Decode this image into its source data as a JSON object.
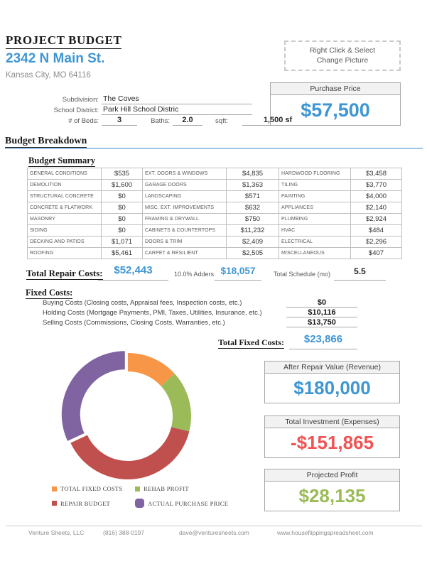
{
  "header": {
    "title": "PROJECT BUDGET",
    "address": "2342 N Main St.",
    "city": "Kansas City, MO 64116",
    "picture_line1": "Right Click & Select",
    "picture_line2": "Change Picture"
  },
  "purchase_price": {
    "label": "Purchase Price",
    "value": "$57,500"
  },
  "property": {
    "subdivision_label": "Subdivision:",
    "subdivision": "The Coves",
    "school_label": "School District:",
    "school": "Park Hill School Distric",
    "beds_label": "# of Beds:",
    "beds": "3",
    "baths_label": "Baths:",
    "baths": "2.0",
    "sqft_label": "sqft:",
    "sqft": "1,500 sf"
  },
  "budget_breakdown_title": "Budget Breakdown",
  "budget_summary": {
    "title": "Budget Summary",
    "groups": [
      [
        {
          "label": "GENERAL CONDITIONS",
          "value": "$535"
        },
        {
          "label": "DEMOLITION",
          "value": "$1,600"
        },
        {
          "label": "STRUCTURAL CONCRETE",
          "value": "$0"
        },
        {
          "label": "CONCRETE & FLATWORK",
          "value": "$0"
        },
        {
          "label": "MASONRY",
          "value": "$0"
        },
        {
          "label": "SIDING",
          "value": "$0"
        },
        {
          "label": "DECKING AND PATIOS",
          "value": "$1,071"
        },
        {
          "label": "ROOFING",
          "value": "$5,461"
        }
      ],
      [
        {
          "label": "EXT. DOORS & WINDOWS",
          "value": "$4,835"
        },
        {
          "label": "GARAGE DOORS",
          "value": "$1,363"
        },
        {
          "label": "LANDSCAPING",
          "value": "$571"
        },
        {
          "label": "MISC. EXT. IMPROVEMENTS",
          "value": "$632"
        },
        {
          "label": "FRAMING & DRYWALL",
          "value": "$750"
        },
        {
          "label": "CABINETS & COUNTERTOPS",
          "value": "$11,232"
        },
        {
          "label": "DOORS & TRIM",
          "value": "$2,409"
        },
        {
          "label": "CARPET & RESILIENT",
          "value": "$2,505"
        }
      ],
      [
        {
          "label": "HARDWOOD FLOORING",
          "value": "$3,458"
        },
        {
          "label": "TILING",
          "value": "$3,770"
        },
        {
          "label": "PAINTING",
          "value": "$4,000"
        },
        {
          "label": "APPLIANCES",
          "value": "$2,140"
        },
        {
          "label": "PLUMBING",
          "value": "$2,924"
        },
        {
          "label": "HVAC",
          "value": "$484"
        },
        {
          "label": "ELECTRICAL",
          "value": "$2,296"
        },
        {
          "label": "MISCELLANEOUS",
          "value": "$407"
        }
      ]
    ]
  },
  "totals": {
    "repair_label": "Total Repair Costs:",
    "repair_value": "$52,443",
    "adders_label": "10.0% Adders",
    "adders_value": "$18,057",
    "schedule_label": "Total Schedule (mo)",
    "schedule_value": "5.5"
  },
  "fixed_costs": {
    "title": "Fixed Costs:",
    "items": [
      {
        "label": "Buying Costs (Closing costs, Appraisal fees, Inspection costs, etc.)",
        "value": "$0"
      },
      {
        "label": "Holding Costs (Mortgage Payments, PMI, Taxes, Utilities, Insurance, etc.)",
        "value": "$10,116"
      },
      {
        "label": "Selling Costs (Commissions, Closing Costs, Warranties, etc.)",
        "value": "$13,750"
      }
    ],
    "total_label": "Total Fixed Costs:",
    "total_value": "$23,866"
  },
  "chart_data": {
    "type": "pie",
    "donut": true,
    "labels": [
      "TOTAL FIXED COSTS",
      "REHAB PROFIT",
      "REPAIR BUDGET",
      "ACTUAL PURCHASE PRICE"
    ],
    "values": [
      23866,
      28135,
      70500,
      57500
    ],
    "colors": [
      "#F79646",
      "#9BBB59",
      "#C0504D",
      "#8064A2"
    ],
    "exploded": [
      false,
      false,
      false,
      true
    ],
    "start_angle_deg": 0,
    "direction": "clockwise",
    "legend_position": "bottom-left",
    "legend_marker_sizes": [
      "small",
      "small",
      "small",
      "large"
    ]
  },
  "summary_boxes": [
    {
      "label": "After Repair Value (Revenue)",
      "value": "$180,000",
      "color": "#3E96D3"
    },
    {
      "label": "Total Investment (Expenses)",
      "value": "-$151,865",
      "color": "#F05352"
    },
    {
      "label": "Projected Profit",
      "value": "$28,135",
      "color": "#9BBB59"
    }
  ],
  "footer": {
    "company": "Venture Sheets, LLC",
    "phone": "(816) 388-0197",
    "email": "dave@venturesheets.com",
    "website": "www.houseflippingspreadsheet.com"
  }
}
